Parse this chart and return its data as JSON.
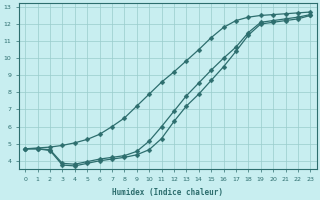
{
  "xlabel": "Humidex (Indice chaleur)",
  "bg_color": "#c8eef0",
  "grid_color": "#99cccc",
  "line_color": "#2d6e6e",
  "xlim": [
    -0.5,
    23.5
  ],
  "ylim": [
    3.5,
    13.2
  ],
  "xticks": [
    0,
    1,
    2,
    3,
    4,
    5,
    6,
    7,
    8,
    9,
    10,
    11,
    12,
    13,
    14,
    15,
    16,
    17,
    18,
    19,
    20,
    21,
    22,
    23
  ],
  "yticks": [
    4,
    5,
    6,
    7,
    8,
    9,
    10,
    11,
    12,
    13
  ],
  "line1_x": [
    0,
    1,
    2,
    3,
    4,
    5,
    6,
    7,
    8,
    9,
    10,
    11,
    12,
    13,
    14,
    15,
    16,
    17,
    18,
    19,
    20,
    21,
    22,
    23
  ],
  "line1_y": [
    4.7,
    4.75,
    4.8,
    4.9,
    5.05,
    5.25,
    5.55,
    6.0,
    6.5,
    7.2,
    7.9,
    8.6,
    9.2,
    9.85,
    10.5,
    11.2,
    11.8,
    12.2,
    12.4,
    12.5,
    12.55,
    12.6,
    12.65,
    12.7
  ],
  "line2_x": [
    0,
    1,
    2,
    3,
    4,
    5,
    6,
    7,
    8,
    9,
    10,
    11,
    12,
    13,
    14,
    15,
    16,
    17,
    18,
    19,
    20,
    21,
    22,
    23
  ],
  "line2_y": [
    4.7,
    4.7,
    4.6,
    3.75,
    3.7,
    3.85,
    4.0,
    4.1,
    4.2,
    4.35,
    4.65,
    5.3,
    6.3,
    7.2,
    7.9,
    8.7,
    9.5,
    10.4,
    11.35,
    12.0,
    12.1,
    12.2,
    12.3,
    12.5
  ],
  "line3_x": [
    0,
    1,
    2,
    3,
    4,
    5,
    6,
    7,
    8,
    9,
    10,
    11,
    12,
    13,
    14,
    15,
    16,
    17,
    18,
    19,
    20,
    21,
    22,
    23
  ],
  "line3_y": [
    4.7,
    4.7,
    4.65,
    3.85,
    3.8,
    3.95,
    4.1,
    4.2,
    4.3,
    4.55,
    5.15,
    6.0,
    6.9,
    7.8,
    8.55,
    9.3,
    10.0,
    10.65,
    11.5,
    12.1,
    12.2,
    12.3,
    12.4,
    12.55
  ]
}
